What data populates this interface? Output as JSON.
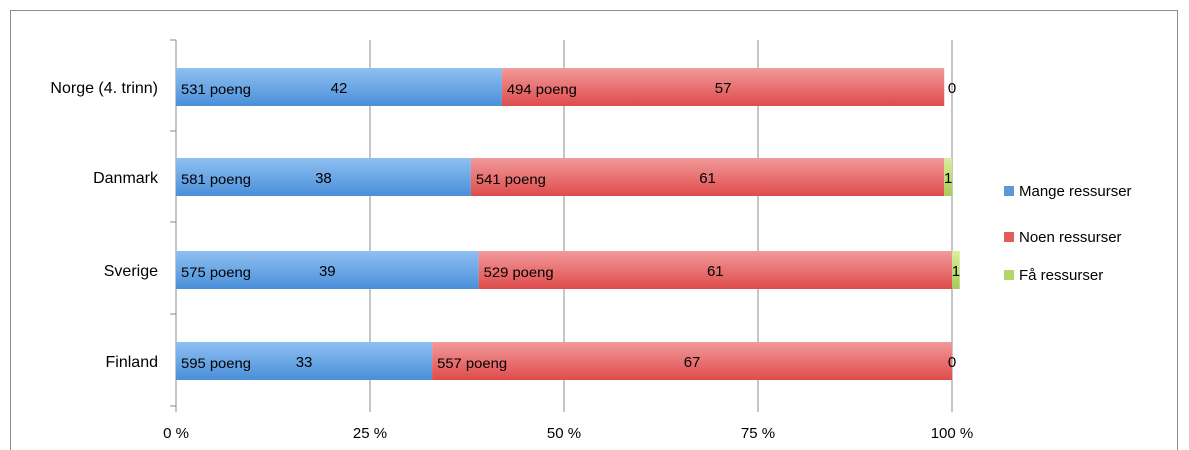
{
  "chart_data": {
    "type": "bar",
    "orientation": "horizontal",
    "stacked": true,
    "categories": [
      "Norge (4. trinn)",
      "Danmark",
      "Sverige",
      "Finland"
    ],
    "series": [
      {
        "name": "Mange ressurser",
        "color": "#5b9bd5",
        "values": [
          42,
          38,
          39,
          33
        ],
        "point_labels": [
          "531 poeng",
          "581 poeng",
          "575 poeng",
          "595 poeng"
        ]
      },
      {
        "name": "Noen ressurser",
        "color": "#e35b5b",
        "values": [
          57,
          61,
          61,
          67
        ],
        "point_labels": [
          "494 poeng",
          "541 poeng",
          "529 poeng",
          "557 poeng"
        ]
      },
      {
        "name": "Få ressurser",
        "color": "#b5d56a",
        "values": [
          0,
          1,
          1,
          0
        ]
      }
    ],
    "xlim": [
      0,
      100
    ],
    "xticks": [
      "0 %",
      "25 %",
      "50 %",
      "75 %",
      "100 %"
    ],
    "grid": true,
    "legend": "right"
  }
}
